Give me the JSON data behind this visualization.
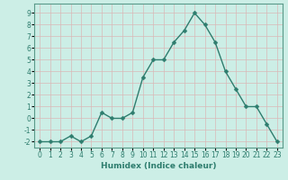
{
  "xlabel": "Humidex (Indice chaleur)",
  "x": [
    0,
    1,
    2,
    3,
    4,
    5,
    6,
    7,
    8,
    9,
    10,
    11,
    12,
    13,
    14,
    15,
    16,
    17,
    18,
    19,
    20,
    21,
    22,
    23
  ],
  "y": [
    -2,
    -2,
    -2,
    -1.5,
    -2,
    -1.5,
    0.5,
    0,
    0,
    0.5,
    3.5,
    5,
    5,
    6.5,
    7.5,
    9,
    8,
    6.5,
    4,
    2.5,
    1,
    1,
    -0.5,
    -2
  ],
  "line_color": "#2e7d6e",
  "marker_color": "#2e7d6e",
  "bg_color": "#cceee6",
  "grid_color_major": "#d9b8b8",
  "ylim": [
    -2.5,
    9.8
  ],
  "xlim": [
    -0.5,
    23.5
  ],
  "yticks": [
    -2,
    -1,
    0,
    1,
    2,
    3,
    4,
    5,
    6,
    7,
    8,
    9
  ],
  "xticks": [
    0,
    1,
    2,
    3,
    4,
    5,
    6,
    7,
    8,
    9,
    10,
    11,
    12,
    13,
    14,
    15,
    16,
    17,
    18,
    19,
    20,
    21,
    22,
    23
  ],
  "xlabel_fontsize": 6.5,
  "tick_fontsize": 5.5,
  "line_width": 1.0,
  "marker_size": 2.5,
  "spine_color": "#5a9a8a"
}
